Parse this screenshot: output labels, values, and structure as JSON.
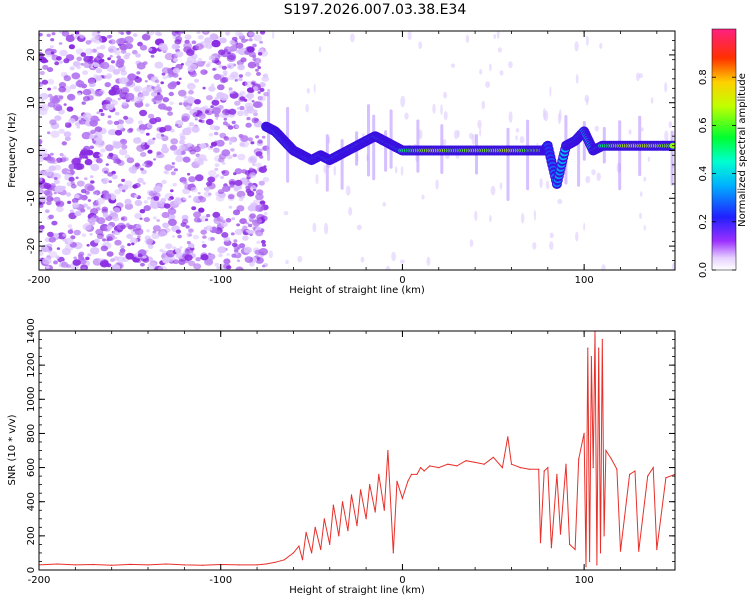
{
  "title": "S197.2026.007.03.38.E34",
  "chart_data": [
    {
      "type": "heatmap",
      "xlabel": "Height of straight line (km)",
      "ylabel": "Frequency (Hz)",
      "xlim": [
        -200,
        150
      ],
      "ylim": [
        -25,
        25
      ],
      "xticks": [
        -200,
        -100,
        0,
        100
      ],
      "yticks": [
        -20,
        -10,
        0,
        10,
        20
      ],
      "colorbar": {
        "label": "Normalized spectral amplitude",
        "range": [
          0,
          1
        ],
        "ticks": [
          "0.0",
          "0.2",
          "0.4",
          "0.6",
          "0.8"
        ]
      },
      "ridge": {
        "x": [
          -75,
          -70,
          -65,
          -60,
          -55,
          -50,
          -45,
          -40,
          -35,
          -30,
          -25,
          -20,
          -15,
          -10,
          -5,
          0,
          10,
          20,
          30,
          40,
          50,
          60,
          70,
          78,
          80,
          85,
          90,
          95,
          100,
          105,
          110,
          120,
          130,
          140,
          150
        ],
        "freq": [
          5,
          4,
          2,
          0,
          -1,
          -2,
          -1,
          -2,
          -1,
          0,
          1,
          2,
          3,
          2,
          1,
          0,
          0,
          0,
          0,
          0,
          0,
          0,
          0,
          0,
          1,
          -7,
          1,
          2,
          4,
          0,
          1,
          1,
          1,
          1,
          1
        ],
        "amp": [
          0.3,
          0.35,
          0.4,
          0.35,
          0.3,
          0.4,
          0.35,
          0.45,
          0.4,
          0.4,
          0.45,
          0.4,
          0.45,
          0.5,
          0.45,
          0.55,
          0.75,
          0.85,
          0.7,
          0.8,
          0.75,
          0.85,
          0.7,
          0.8,
          0.2,
          0.3,
          0.4,
          0.3,
          0.35,
          0.5,
          0.55,
          0.8,
          0.85,
          0.8,
          0.75
        ]
      }
    },
    {
      "type": "line",
      "xlabel": "Height of straight line (km)",
      "ylabel": "SNR (10 * v/v)",
      "xlim": [
        -200,
        150
      ],
      "ylim": [
        0,
        1400
      ],
      "xticks": [
        -200,
        -100,
        0,
        100
      ],
      "yticks": [
        0,
        200,
        400,
        600,
        800,
        1000,
        1200,
        1400
      ],
      "color": "#e8302a",
      "series": [
        {
          "x": [
            -200,
            -190,
            -180,
            -170,
            -160,
            -150,
            -140,
            -130,
            -120,
            -110,
            -100,
            -90,
            -80,
            -75,
            -70,
            -65,
            -60,
            -57,
            -55,
            -53,
            -50,
            -48,
            -45,
            -43,
            -40,
            -38,
            -35,
            -33,
            -30,
            -28,
            -25,
            -23,
            -20,
            -18,
            -15,
            -13,
            -10,
            -8,
            -5,
            -3,
            0,
            3,
            5,
            8,
            10,
            12,
            15,
            20,
            25,
            30,
            35,
            40,
            45,
            50,
            55,
            58,
            60,
            65,
            70,
            75,
            76,
            78,
            80,
            82,
            85,
            87,
            90,
            92,
            95,
            97,
            100,
            101,
            102,
            103,
            104,
            105,
            106,
            107,
            108,
            109,
            110,
            111,
            112,
            115,
            118,
            120,
            125,
            128,
            130,
            135,
            138,
            140,
            145,
            150
          ],
          "y": [
            30,
            35,
            30,
            32,
            28,
            33,
            30,
            35,
            30,
            28,
            32,
            30,
            30,
            35,
            45,
            60,
            100,
            140,
            60,
            220,
            100,
            250,
            120,
            300,
            150,
            380,
            200,
            400,
            230,
            440,
            260,
            470,
            300,
            500,
            340,
            560,
            350,
            700,
            100,
            520,
            420,
            520,
            560,
            560,
            600,
            580,
            610,
            600,
            620,
            610,
            640,
            630,
            620,
            660,
            600,
            780,
            620,
            600,
            590,
            590,
            160,
            580,
            600,
            130,
            560,
            210,
            620,
            150,
            120,
            650,
            800,
            20,
            1300,
            50,
            1250,
            600,
            1400,
            30,
            1300,
            100,
            1350,
            200,
            700,
            650,
            590,
            110,
            560,
            580,
            110,
            550,
            600,
            120,
            540,
            560
          ]
        }
      ]
    }
  ]
}
